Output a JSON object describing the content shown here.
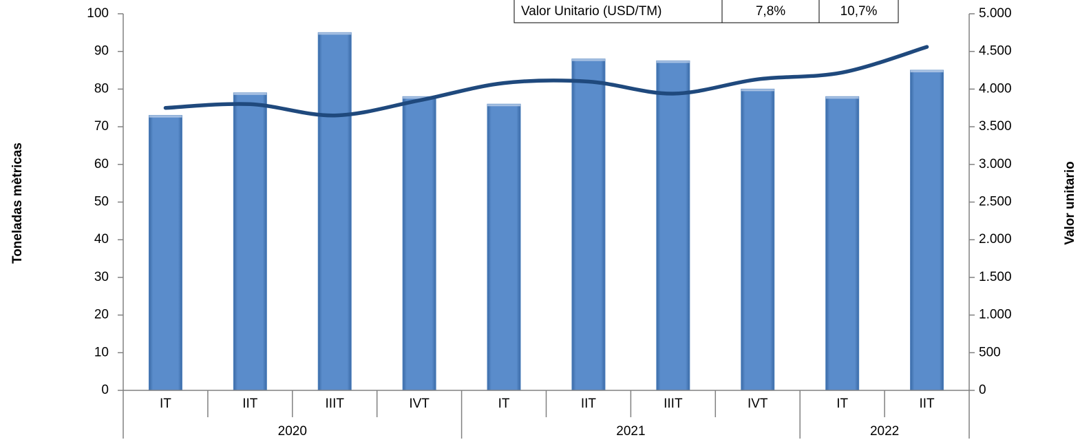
{
  "chart_data": {
    "type": "bar-line",
    "y_axis_label": "Toneladas mètricas",
    "y2_axis_label": "Valor unitario",
    "category_groups": [
      {
        "label": "2020",
        "categories": [
          "IT",
          "IIT",
          "IIIT",
          "IVT"
        ]
      },
      {
        "label": "2021",
        "categories": [
          "IT",
          "IIT",
          "IIIT",
          "IVT"
        ]
      },
      {
        "label": "2022",
        "categories": [
          "IT",
          "IIT"
        ]
      }
    ],
    "series": [
      {
        "type": "bar",
        "color": "#4f81bd",
        "values": [
          73,
          79,
          95,
          78,
          76,
          88,
          87.5,
          80,
          78,
          85
        ]
      },
      {
        "type": "line",
        "axis": "y2",
        "color": "#1f497d",
        "values": [
          3750,
          3800,
          3650,
          3850,
          4080,
          4100,
          3940,
          4130,
          4220,
          4560
        ]
      }
    ],
    "ylim": [
      0,
      100
    ],
    "yticks": [
      0,
      10,
      20,
      30,
      40,
      50,
      60,
      70,
      80,
      90,
      100
    ],
    "y2lim": [
      0,
      5000
    ],
    "y2ticks": [
      0,
      500,
      {
        "value": 1000,
        "label": "1.000"
      },
      {
        "value": 1500,
        "label": "1.500"
      },
      {
        "value": 2000,
        "label": "2.000"
      },
      {
        "value": 2500,
        "label": "2.500"
      },
      {
        "value": 3000,
        "label": "3.000"
      },
      {
        "value": 3500,
        "label": "3.500"
      },
      {
        "value": 4000,
        "label": "4.000"
      },
      {
        "value": 4500,
        "label": "4.500"
      },
      {
        "value": 5000,
        "label": "5.000"
      }
    ],
    "table": {
      "rows": [
        [
          "Valor Unitario (USD/TM)",
          "7,8%",
          "10,7%"
        ]
      ]
    }
  }
}
